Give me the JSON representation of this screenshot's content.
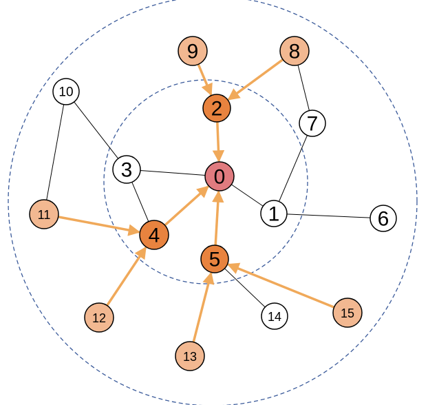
{
  "colors": {
    "root": "#e07b7f",
    "level1": "#e8833f",
    "level2": "#f2b891",
    "plain": "#ffffff",
    "ring": "#3a5a9a",
    "arrow": "#f0a95a",
    "edge": "#000000"
  },
  "nodes": [
    {
      "id": "0",
      "label": "0",
      "kind": "root"
    },
    {
      "id": "1",
      "label": "1",
      "kind": "plain"
    },
    {
      "id": "2",
      "label": "2",
      "kind": "level1"
    },
    {
      "id": "3",
      "label": "3",
      "kind": "plain"
    },
    {
      "id": "4",
      "label": "4",
      "kind": "level1"
    },
    {
      "id": "5",
      "label": "5",
      "kind": "level1"
    },
    {
      "id": "6",
      "label": "6",
      "kind": "plain"
    },
    {
      "id": "7",
      "label": "7",
      "kind": "plain"
    },
    {
      "id": "8",
      "label": "8",
      "kind": "level2"
    },
    {
      "id": "9",
      "label": "9",
      "kind": "level2"
    },
    {
      "id": "10",
      "label": "10",
      "kind": "plain"
    },
    {
      "id": "11",
      "label": "11",
      "kind": "level2"
    },
    {
      "id": "12",
      "label": "12",
      "kind": "level2"
    },
    {
      "id": "13",
      "label": "13",
      "kind": "level2"
    },
    {
      "id": "14",
      "label": "14",
      "kind": "plain"
    },
    {
      "id": "15",
      "label": "15",
      "kind": "level2"
    }
  ],
  "edges": [
    {
      "from": "3",
      "to": "0"
    },
    {
      "from": "0",
      "to": "1"
    },
    {
      "from": "1",
      "to": "6"
    },
    {
      "from": "1",
      "to": "7"
    },
    {
      "from": "7",
      "to": "8"
    },
    {
      "from": "3",
      "to": "10"
    },
    {
      "from": "10",
      "to": "11"
    },
    {
      "from": "3",
      "to": "4"
    },
    {
      "from": "5",
      "to": "14"
    }
  ],
  "arrows": [
    {
      "from": "9",
      "to": "2"
    },
    {
      "from": "8",
      "to": "2"
    },
    {
      "from": "2",
      "to": "0"
    },
    {
      "from": "4",
      "to": "0"
    },
    {
      "from": "5",
      "to": "0"
    },
    {
      "from": "11",
      "to": "4"
    },
    {
      "from": "12",
      "to": "4"
    },
    {
      "from": "13",
      "to": "5"
    },
    {
      "from": "15",
      "to": "5"
    }
  ]
}
